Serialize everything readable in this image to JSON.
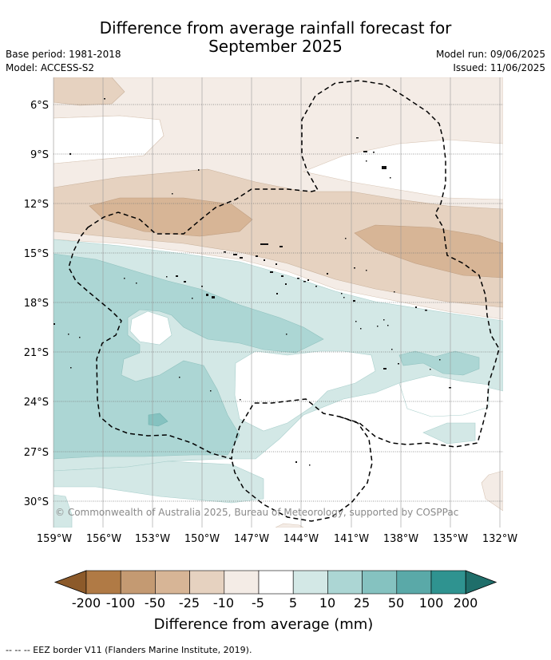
{
  "header": {
    "title_line1": "Difference from average rainfall forecast for",
    "title_line2": "September 2025",
    "base_period": "Base period: 1981-2018",
    "model": "Model: ACCESS-S2",
    "model_run": "Model run: 09/06/2025",
    "issued": "Issued: 11/06/2025"
  },
  "map": {
    "lat_labels": [
      "6°S",
      "9°S",
      "12°S",
      "15°S",
      "18°S",
      "21°S",
      "24°S",
      "27°S",
      "30°S"
    ],
    "lon_labels": [
      "159°W",
      "156°W",
      "153°W",
      "150°W",
      "147°W",
      "144°W",
      "141°W",
      "138°W",
      "135°W",
      "132°W"
    ],
    "copyright": "© Commonwealth of Australia 2025, Bureau of Meteorology, supported by COSPPac",
    "legend_line_label": "--  --  -- EEZ border V11 (Flanders Marine Institute, 2019)."
  },
  "colorbar": {
    "title": "Difference from average (mm)",
    "tick_labels": [
      "-200",
      "-100",
      "-50",
      "-25",
      "-10",
      "-5",
      "5",
      "10",
      "25",
      "50",
      "100",
      "200"
    ],
    "colors": [
      "#8c5a2a",
      "#b07a45",
      "#c49a72",
      "#d7b596",
      "#e6d2c0",
      "#f4ece6",
      "#ffffff",
      "#d3e8e6",
      "#acd6d4",
      "#85c2c0",
      "#5aa9a8",
      "#2f9390",
      "#1f6e6a"
    ]
  }
}
